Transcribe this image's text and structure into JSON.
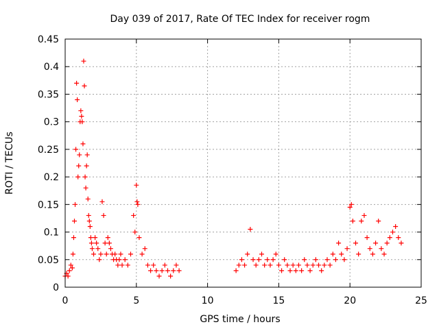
{
  "chart_data": {
    "type": "scatter",
    "title": "Day 039 of 2017, Rate Of TEC Index for receiver rogm",
    "xlabel": "GPS time / hours",
    "ylabel": "ROTI / TECUs",
    "xlim": [
      0,
      25
    ],
    "ylim": [
      0,
      0.45
    ],
    "x_ticks": [
      0,
      5,
      10,
      15,
      20,
      25
    ],
    "x_tick_labels": [
      "0",
      "5",
      "10",
      "15",
      "20",
      "25"
    ],
    "y_ticks": [
      0,
      0.05,
      0.1,
      0.15,
      0.2,
      0.25,
      0.3,
      0.35,
      0.4,
      0.45
    ],
    "y_tick_labels": [
      "0",
      "0.05",
      "0.1",
      "0.15",
      "0.2",
      "0.25",
      "0.3",
      "0.35",
      "0.4",
      "0.45"
    ],
    "grid": true,
    "marker": "+",
    "series": [
      {
        "name": "ROTI",
        "color": "#ff0000",
        "x": [
          0.0,
          0.1,
          0.2,
          0.3,
          0.4,
          0.5,
          0.55,
          0.6,
          0.65,
          0.7,
          0.75,
          0.8,
          0.85,
          0.9,
          0.95,
          1.0,
          1.05,
          1.1,
          1.15,
          1.2,
          1.25,
          1.3,
          1.35,
          1.4,
          1.45,
          1.5,
          1.55,
          1.6,
          1.65,
          1.7,
          1.75,
          1.8,
          1.85,
          1.9,
          2.0,
          2.1,
          2.2,
          2.3,
          2.4,
          2.5,
          2.6,
          2.7,
          2.8,
          2.9,
          3.0,
          3.1,
          3.2,
          3.3,
          3.4,
          3.5,
          3.6,
          3.7,
          3.8,
          3.9,
          4.0,
          4.2,
          4.4,
          4.6,
          4.8,
          4.9,
          5.0,
          5.05,
          5.1,
          5.2,
          5.4,
          5.6,
          5.8,
          6.0,
          6.2,
          6.4,
          6.6,
          6.8,
          7.0,
          7.2,
          7.4,
          7.6,
          7.8,
          8.0,
          12.0,
          12.2,
          12.4,
          12.6,
          12.8,
          13.0,
          13.2,
          13.4,
          13.6,
          13.8,
          14.0,
          14.2,
          14.4,
          14.6,
          14.8,
          15.0,
          15.2,
          15.4,
          15.6,
          15.8,
          16.0,
          16.2,
          16.4,
          16.6,
          16.8,
          17.0,
          17.2,
          17.4,
          17.6,
          17.8,
          18.0,
          18.2,
          18.4,
          18.6,
          18.8,
          19.0,
          19.2,
          19.4,
          19.6,
          19.8,
          20.0,
          20.1,
          20.2,
          20.4,
          20.6,
          20.8,
          21.0,
          21.2,
          21.4,
          21.6,
          21.8,
          22.0,
          22.2,
          22.4,
          22.6,
          22.8,
          23.0,
          23.2,
          23.4,
          23.6
        ],
        "y": [
          0.02,
          0.025,
          0.02,
          0.03,
          0.04,
          0.035,
          0.06,
          0.09,
          0.12,
          0.15,
          0.25,
          0.37,
          0.34,
          0.2,
          0.22,
          0.24,
          0.3,
          0.32,
          0.31,
          0.3,
          0.26,
          0.41,
          0.365,
          0.2,
          0.18,
          0.22,
          0.24,
          0.16,
          0.13,
          0.12,
          0.11,
          0.09,
          0.08,
          0.07,
          0.06,
          0.09,
          0.08,
          0.07,
          0.05,
          0.06,
          0.155,
          0.13,
          0.08,
          0.06,
          0.09,
          0.08,
          0.07,
          0.06,
          0.05,
          0.06,
          0.05,
          0.04,
          0.05,
          0.06,
          0.04,
          0.05,
          0.04,
          0.06,
          0.13,
          0.1,
          0.185,
          0.155,
          0.15,
          0.09,
          0.06,
          0.07,
          0.04,
          0.03,
          0.04,
          0.03,
          0.02,
          0.03,
          0.04,
          0.03,
          0.02,
          0.03,
          0.04,
          0.03,
          0.03,
          0.04,
          0.05,
          0.04,
          0.06,
          0.105,
          0.05,
          0.04,
          0.05,
          0.06,
          0.04,
          0.05,
          0.04,
          0.05,
          0.06,
          0.04,
          0.03,
          0.05,
          0.04,
          0.03,
          0.04,
          0.03,
          0.04,
          0.03,
          0.05,
          0.04,
          0.03,
          0.04,
          0.05,
          0.04,
          0.03,
          0.04,
          0.05,
          0.04,
          0.06,
          0.05,
          0.08,
          0.06,
          0.05,
          0.07,
          0.145,
          0.15,
          0.12,
          0.08,
          0.06,
          0.12,
          0.13,
          0.09,
          0.07,
          0.06,
          0.08,
          0.12,
          0.07,
          0.06,
          0.08,
          0.09,
          0.1,
          0.11,
          0.09,
          0.08
        ]
      }
    ]
  }
}
